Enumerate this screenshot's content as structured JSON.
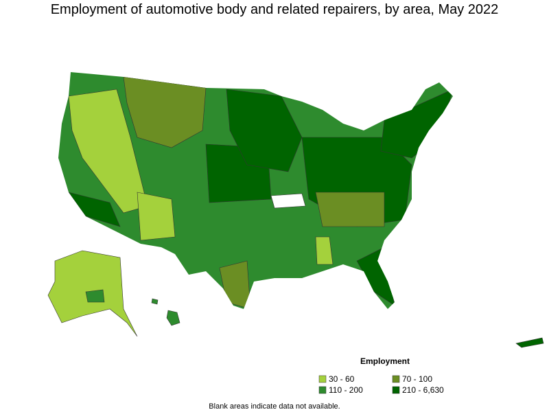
{
  "title": "Employment of automotive body and related repairers, by area, May 2022",
  "legend": {
    "title": "Employment",
    "items": [
      {
        "label": "30 - 60",
        "color": "#a4d13c"
      },
      {
        "label": "70 - 100",
        "color": "#6b8e23"
      },
      {
        "label": "110 - 200",
        "color": "#2e8b2e"
      },
      {
        "label": "210 - 6,630",
        "color": "#006400"
      }
    ]
  },
  "note": "Blank areas indicate data not available."
}
